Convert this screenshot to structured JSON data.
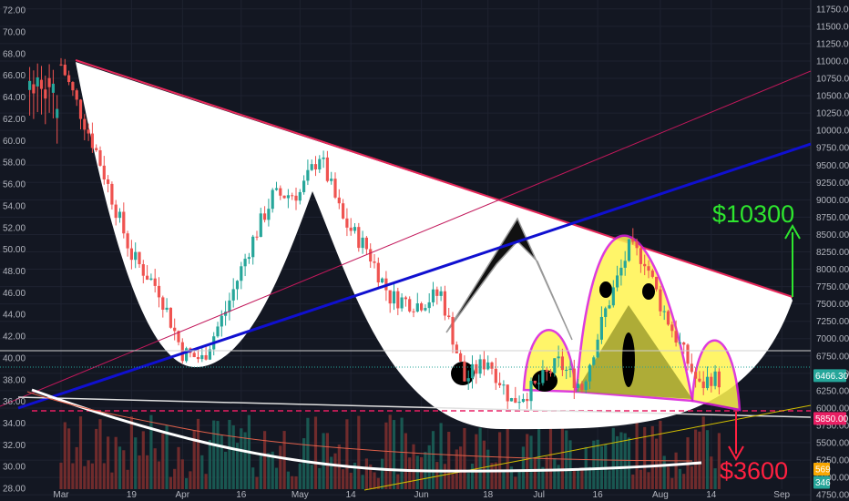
{
  "chart_data": {
    "type": "candlestick",
    "x_ticks": [
      "Mar",
      "19",
      "Apr",
      "16",
      "May",
      "14",
      "Jun",
      "18",
      "Jul",
      "16",
      "Aug",
      "14",
      "Sep"
    ],
    "left_axis": {
      "ticks": [
        "72.00",
        "70.00",
        "68.00",
        "66.00",
        "64.00",
        "62.00",
        "60.00",
        "58.00",
        "56.00",
        "54.00",
        "52.00",
        "50.00",
        "48.00",
        "46.00",
        "44.00",
        "42.00",
        "40.00",
        "38.00",
        "36.00",
        "34.00",
        "32.00",
        "30.00",
        "28.00"
      ],
      "ylim": [
        27,
        72.6
      ]
    },
    "right_axis": {
      "ticks": [
        "11750.00",
        "11500.00",
        "11250.00",
        "11000.00",
        "10750.00",
        "10500.00",
        "10250.00",
        "10000.00",
        "9750.00",
        "9500.00",
        "9250.00",
        "9000.00",
        "8750.00",
        "8500.00",
        "8250.00",
        "8000.00",
        "7750.00",
        "7500.00",
        "7250.00",
        "7000.00",
        "6750.00",
        "6500.00",
        "6250.00",
        "6000.00",
        "5750.00",
        "5500.00",
        "5250.00",
        "5000.00",
        "4750.00"
      ],
      "ylim": [
        4700,
        11800
      ]
    },
    "price_badges": [
      {
        "label": "6466.30",
        "value": 6466.3,
        "color": "#26a69a"
      },
      {
        "label": "5850.00",
        "value": 5850,
        "color": "#e91e63"
      },
      {
        "label": "569",
        "value": 5120,
        "color": "#f7a600"
      },
      {
        "label": "346",
        "value": 4930,
        "color": "#26a69a"
      }
    ],
    "annotations": [
      {
        "text": "$10300",
        "color": "#2ee62e"
      },
      {
        "text": "$3600",
        "color": "#ff2040"
      }
    ],
    "trend_path": [
      [
        "Mar 1",
        10950
      ],
      [
        "Mar 10",
        9700
      ],
      [
        "Mar 19",
        8200
      ],
      [
        "Mar 26",
        7700
      ],
      [
        "Apr 1",
        6800
      ],
      [
        "Apr 6",
        6700
      ],
      [
        "Apr 12",
        7400
      ],
      [
        "Apr 18",
        8300
      ],
      [
        "Apr 24",
        9050
      ],
      [
        "May 1",
        9100
      ],
      [
        "May 6",
        9650
      ],
      [
        "May 12",
        8700
      ],
      [
        "May 18",
        8300
      ],
      [
        "May 24",
        7600
      ],
      [
        "May 31",
        7500
      ],
      [
        "Jun 6",
        7650
      ],
      [
        "Jun 12",
        6400
      ],
      [
        "Jun 18",
        6700
      ],
      [
        "Jun 24",
        6100
      ],
      [
        "Jun 30",
        6300
      ],
      [
        "Jul 6",
        6650
      ],
      [
        "Jul 12",
        6300
      ],
      [
        "Jul 18",
        7400
      ],
      [
        "Jul 24",
        8300
      ],
      [
        "Jul 28",
        8150
      ],
      [
        "Aug 1",
        7500
      ],
      [
        "Aug 6",
        6900
      ],
      [
        "Aug 11",
        6300
      ],
      [
        "Aug 14",
        6450
      ],
      [
        "Aug 16",
        6400
      ]
    ]
  },
  "colors": {
    "background": "#131722",
    "grid": "#1e2230",
    "axis_text": "#b2b5be",
    "up": "#26a69a",
    "down": "#ef5350",
    "resistance": "#e8295b",
    "blue_trend": "#1010d0",
    "pink_channel": "#c2185b",
    "cup": "#ffffff",
    "bumps_fill": "#fff44f",
    "bumps_stroke": "#d81bd8",
    "marker": "#ffffff"
  },
  "icons": [
    "arrow-up-icon",
    "arrow-down-icon"
  ]
}
